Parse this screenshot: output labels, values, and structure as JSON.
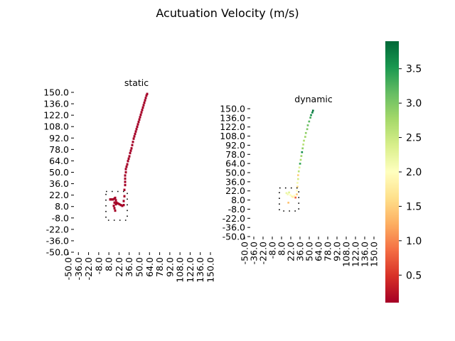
{
  "figure": {
    "title": "Acutuation Velocity (m/s)"
  },
  "chart_data": [
    {
      "type": "heatmap",
      "title": "static",
      "xlabel": "",
      "ylabel": "",
      "x_tick_labels": [
        "-50.0",
        "-36.0",
        "-22.0",
        "-8.0",
        "8.0",
        "22.0",
        "36.0",
        "50.0",
        "64.0",
        "78.0",
        "92.0",
        "108.0",
        "122.0",
        "136.0",
        "150.0"
      ],
      "y_tick_labels": [
        "150.0",
        "136.0",
        "122.0",
        "108.0",
        "92.0",
        "78.0",
        "64.0",
        "50.0",
        "36.0",
        "22.0",
        "8.0",
        "-8.0",
        "-22.0",
        "-36.0",
        "-50.0"
      ],
      "xlim": [
        -50,
        150
      ],
      "ylim": [
        -50,
        150
      ],
      "colormap": "RdYlGn",
      "grid": false,
      "obstacle_box": {
        "x0": -5,
        "x1": 25,
        "y0": -10,
        "y1": 26
      },
      "cells": [
        {
          "x": 1,
          "y": 16,
          "v": 0.1
        },
        {
          "x": 3,
          "y": 16,
          "v": 0.1
        },
        {
          "x": 5,
          "y": 16,
          "v": 0.1
        },
        {
          "x": 7,
          "y": 17,
          "v": 0.1
        },
        {
          "x": 8,
          "y": 18,
          "v": 0.1
        },
        {
          "x": 9,
          "y": 15,
          "v": 0.1
        },
        {
          "x": 10,
          "y": 12,
          "v": 0.1
        },
        {
          "x": 12,
          "y": 11,
          "v": 0.1
        },
        {
          "x": 14,
          "y": 10,
          "v": 0.1
        },
        {
          "x": 16,
          "y": 9,
          "v": 0.1
        },
        {
          "x": 18,
          "y": 8,
          "v": 0.1
        },
        {
          "x": 20,
          "y": 9,
          "v": 0.1
        },
        {
          "x": 7,
          "y": 12,
          "v": 0.1
        },
        {
          "x": 6,
          "y": 8,
          "v": 0.1
        },
        {
          "x": 7,
          "y": 5,
          "v": 0.1
        },
        {
          "x": 8,
          "y": 2,
          "v": 0.1
        },
        {
          "x": 9,
          "y": 10,
          "v": 0.1
        },
        {
          "x": 20,
          "y": 14,
          "v": 0.1
        },
        {
          "x": 21,
          "y": 20,
          "v": 0.1
        },
        {
          "x": 21,
          "y": 28,
          "v": 0.1
        },
        {
          "x": 22,
          "y": 34,
          "v": 0.1
        },
        {
          "x": 22,
          "y": 38,
          "v": 0.1
        },
        {
          "x": 22,
          "y": 42,
          "v": 0.1
        },
        {
          "x": 22,
          "y": 46,
          "v": 0.1
        },
        {
          "x": 23,
          "y": 50,
          "v": 0.1
        },
        {
          "x": 23,
          "y": 54,
          "v": 0.1
        },
        {
          "x": 24,
          "y": 57,
          "v": 0.1
        },
        {
          "x": 25,
          "y": 60,
          "v": 0.1
        },
        {
          "x": 26,
          "y": 64,
          "v": 0.1
        },
        {
          "x": 27,
          "y": 67,
          "v": 0.1
        },
        {
          "x": 28,
          "y": 70,
          "v": 0.1
        },
        {
          "x": 29,
          "y": 74,
          "v": 0.1
        },
        {
          "x": 30,
          "y": 77,
          "v": 0.1
        },
        {
          "x": 31,
          "y": 80,
          "v": 0.1
        },
        {
          "x": 32,
          "y": 84,
          "v": 0.1
        },
        {
          "x": 33,
          "y": 88,
          "v": 0.1
        },
        {
          "x": 34,
          "y": 92,
          "v": 0.1
        },
        {
          "x": 35,
          "y": 95,
          "v": 0.1
        },
        {
          "x": 36,
          "y": 98,
          "v": 0.1
        },
        {
          "x": 37,
          "y": 101,
          "v": 0.1
        },
        {
          "x": 38,
          "y": 104,
          "v": 0.1
        },
        {
          "x": 39,
          "y": 107,
          "v": 0.1
        },
        {
          "x": 40,
          "y": 110,
          "v": 0.1
        },
        {
          "x": 41,
          "y": 113,
          "v": 0.1
        },
        {
          "x": 42,
          "y": 116,
          "v": 0.1
        },
        {
          "x": 43,
          "y": 119,
          "v": 0.1
        },
        {
          "x": 44,
          "y": 122,
          "v": 0.1
        },
        {
          "x": 45,
          "y": 125,
          "v": 0.1
        },
        {
          "x": 46,
          "y": 128,
          "v": 0.1
        },
        {
          "x": 47,
          "y": 131,
          "v": 0.1
        },
        {
          "x": 48,
          "y": 134,
          "v": 0.1
        },
        {
          "x": 49,
          "y": 137,
          "v": 0.1
        },
        {
          "x": 50,
          "y": 140,
          "v": 0.1
        },
        {
          "x": 51,
          "y": 143,
          "v": 0.1
        },
        {
          "x": 52,
          "y": 146,
          "v": 0.1
        },
        {
          "x": 53,
          "y": 148,
          "v": 0.1
        }
      ]
    },
    {
      "type": "heatmap",
      "title": "dynamic",
      "xlabel": "",
      "ylabel": "",
      "x_tick_labels": [
        "-50.0",
        "-36.0",
        "-22.0",
        "-8.0",
        "8.0",
        "22.0",
        "36.0",
        "50.0",
        "64.0",
        "78.0",
        "92.0",
        "108.0",
        "122.0",
        "136.0",
        "150.0"
      ],
      "y_tick_labels": [
        "150.0",
        "136.0",
        "122.0",
        "108.0",
        "92.0",
        "78.0",
        "64.0",
        "50.0",
        "36.0",
        "22.0",
        "8.0",
        "-8.0",
        "-22.0",
        "-36.0",
        "-50.0"
      ],
      "xlim": [
        -50,
        150
      ],
      "ylim": [
        -50,
        150
      ],
      "colormap": "RdYlGn",
      "grid": false,
      "obstacle_box": {
        "x0": -5,
        "x1": 25,
        "y0": -10,
        "y1": 26
      },
      "cells": [
        {
          "x": 6,
          "y": 18,
          "v": 2.2
        },
        {
          "x": 8,
          "y": 16,
          "v": 2.1
        },
        {
          "x": 10,
          "y": 19,
          "v": 2.3
        },
        {
          "x": 12,
          "y": 15,
          "v": 2.0
        },
        {
          "x": 14,
          "y": 13,
          "v": 1.9
        },
        {
          "x": 16,
          "y": 12,
          "v": 1.8
        },
        {
          "x": 18,
          "y": 14,
          "v": 2.0
        },
        {
          "x": 20,
          "y": 11,
          "v": 0.8
        },
        {
          "x": 9,
          "y": 3,
          "v": 1.4
        },
        {
          "x": 22,
          "y": 16,
          "v": 1.5
        },
        {
          "x": 22,
          "y": 22,
          "v": 2.0
        },
        {
          "x": 23,
          "y": 28,
          "v": 1.6
        },
        {
          "x": 23,
          "y": 34,
          "v": 2.1
        },
        {
          "x": 24,
          "y": 40,
          "v": 2.4
        },
        {
          "x": 24,
          "y": 46,
          "v": 1.5
        },
        {
          "x": 25,
          "y": 52,
          "v": 2.6
        },
        {
          "x": 26,
          "y": 58,
          "v": 2.3
        },
        {
          "x": 27,
          "y": 64,
          "v": 3.4
        },
        {
          "x": 28,
          "y": 70,
          "v": 2.7
        },
        {
          "x": 29,
          "y": 76,
          "v": 2.8
        },
        {
          "x": 30,
          "y": 82,
          "v": 3.6
        },
        {
          "x": 31,
          "y": 88,
          "v": 2.9
        },
        {
          "x": 32,
          "y": 94,
          "v": 2.6
        },
        {
          "x": 33,
          "y": 100,
          "v": 2.7
        },
        {
          "x": 35,
          "y": 106,
          "v": 2.8
        },
        {
          "x": 36,
          "y": 112,
          "v": 2.9
        },
        {
          "x": 38,
          "y": 118,
          "v": 3.0
        },
        {
          "x": 39,
          "y": 124,
          "v": 3.1
        },
        {
          "x": 41,
          "y": 130,
          "v": 3.2
        },
        {
          "x": 43,
          "y": 136,
          "v": 3.3
        },
        {
          "x": 44,
          "y": 140,
          "v": 3.6
        },
        {
          "x": 46,
          "y": 144,
          "v": 3.7
        },
        {
          "x": 47,
          "y": 147,
          "v": 3.8
        }
      ]
    }
  ],
  "colorbar": {
    "colormap": "RdYlGn",
    "vmin": 0.1,
    "vmax": 3.9,
    "ticks": [
      {
        "value": 0.5,
        "label": "0.5"
      },
      {
        "value": 1.0,
        "label": "1.0"
      },
      {
        "value": 1.5,
        "label": "1.5"
      },
      {
        "value": 2.0,
        "label": "2.0"
      },
      {
        "value": 2.5,
        "label": "2.5"
      },
      {
        "value": 3.0,
        "label": "3.0"
      },
      {
        "value": 3.5,
        "label": "3.5"
      }
    ]
  }
}
